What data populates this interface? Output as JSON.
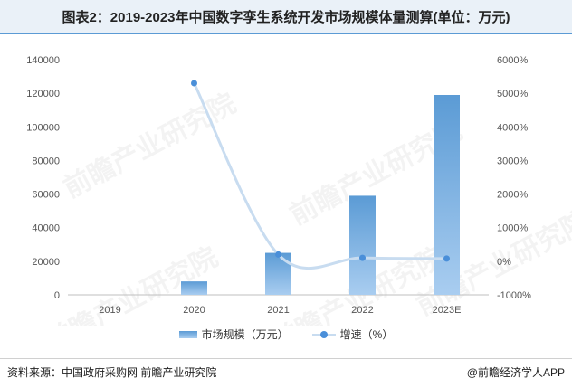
{
  "title": "图表2：2019-2023年中国数字孪生系统开发市场规模体量测算(单位：万元)",
  "source": "资料来源：中国政府采购网 前瞻产业研究院",
  "brand": "@前瞻经济学人APP",
  "watermark": "前瞻产业研究院",
  "colors": {
    "bar_top": "#5b9bd5",
    "bar_bottom": "#a9cdf0",
    "line": "#c8dcf0",
    "marker": "#4a8fd9"
  },
  "chart_data": {
    "type": "bar",
    "categories": [
      "2019",
      "2020",
      "2021",
      "2022",
      "2023E"
    ],
    "series": [
      {
        "name": "市场规模（万元）",
        "type": "bar",
        "axis": "left",
        "values": [
          0,
          8000,
          25000,
          59000,
          119000
        ]
      },
      {
        "name": "增速（%）",
        "type": "line",
        "axis": "right",
        "values": [
          null,
          5300,
          200,
          100,
          80
        ]
      }
    ],
    "left_axis": {
      "ylim": [
        0,
        140000
      ],
      "ticks": [
        "140000",
        "120000",
        "100000",
        "80000",
        "60000",
        "40000",
        "20000",
        "0"
      ]
    },
    "right_axis": {
      "ylim": [
        -1000,
        6000
      ],
      "ticks": [
        "6000%",
        "5000%",
        "4000%",
        "3000%",
        "2000%",
        "1000%",
        "0%",
        "-1000%"
      ]
    },
    "legend": "bottom-center",
    "grid": false
  }
}
